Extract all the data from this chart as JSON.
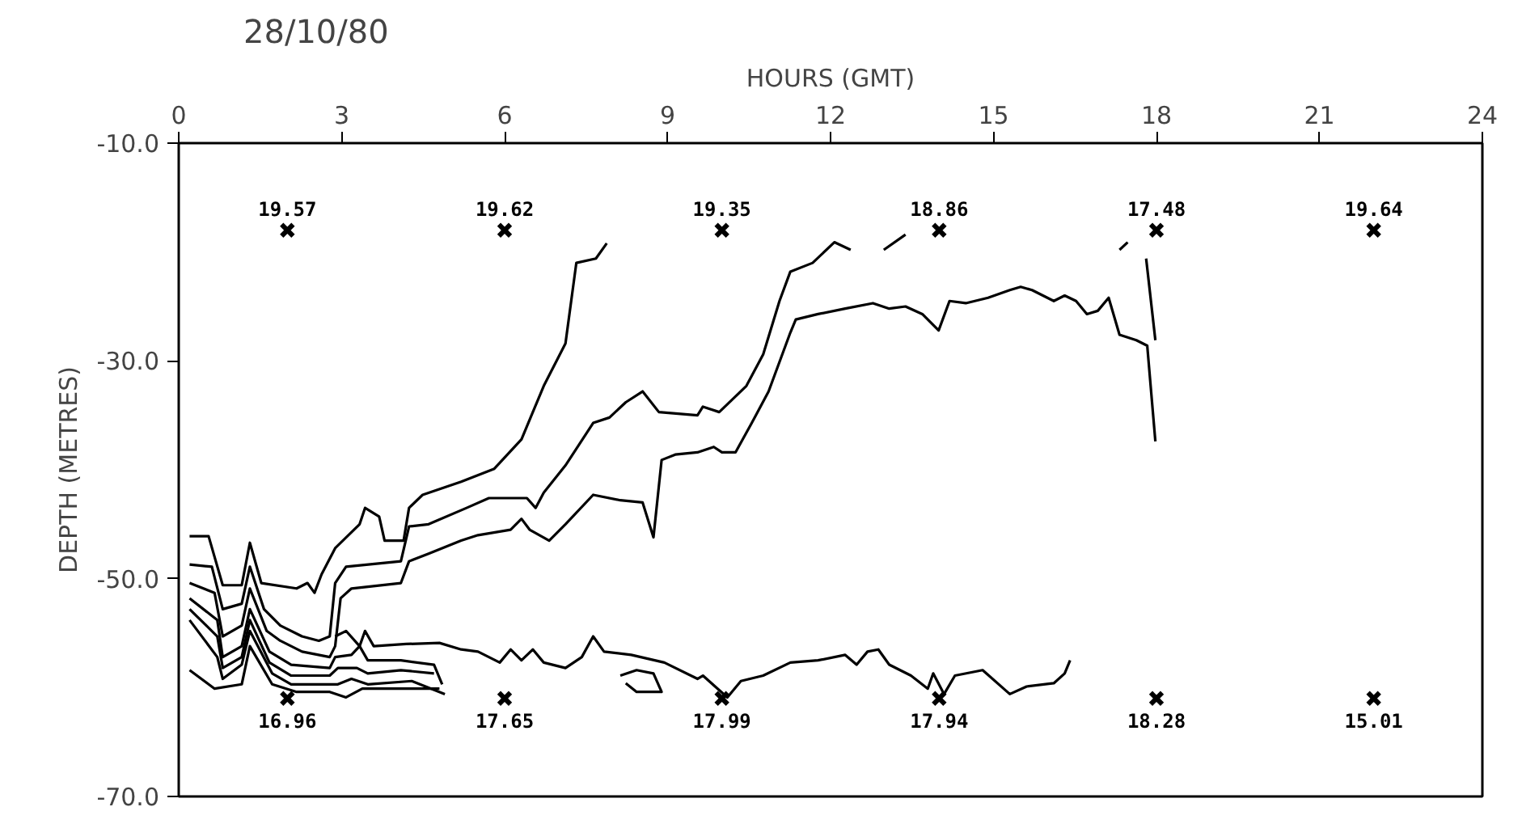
{
  "chart_data": {
    "type": "line",
    "title": "28/10/80",
    "xlabel": "HOURS (GMT)",
    "ylabel": "DEPTH (METRES)",
    "xlim": [
      0,
      24
    ],
    "xticks": [
      0,
      3,
      6,
      9,
      12,
      15,
      18,
      21,
      24
    ],
    "ylim": [
      -70,
      -10
    ],
    "yticks": [
      {
        "value": -10,
        "label": "-10.0"
      },
      {
        "value": -30,
        "label": "-30.0"
      },
      {
        "value": -50,
        "label": "-50.0"
      },
      {
        "value": -70,
        "label": "-70.0"
      }
    ],
    "grid": false,
    "line_style": "solid",
    "marker": "none",
    "series": [
      {
        "color": "#000000",
        "x": [
          0.2,
          0.55,
          0.81,
          1.16,
          1.31,
          1.52,
          2.17,
          2.37,
          2.5,
          2.63,
          2.88,
          3.33,
          3.43,
          3.69,
          3.79,
          4.14,
          4.24,
          4.49,
          5.2,
          5.81,
          6.31,
          6.72,
          7.12,
          7.32,
          7.68,
          7.88
        ],
        "values": [
          -46.1,
          -46.1,
          -50.6,
          -50.6,
          -46.7,
          -50.4,
          -50.9,
          -50.4,
          -51.3,
          -49.6,
          -47.2,
          -45.0,
          -43.5,
          -44.3,
          -46.5,
          -46.5,
          -43.5,
          -42.3,
          -41.1,
          -39.9,
          -37.2,
          -32.3,
          -28.4,
          -21.0,
          -20.6,
          -19.2
        ]
      },
      {
        "color": "#000000",
        "x": [
          0.2,
          0.61,
          0.81,
          1.16,
          1.31,
          1.57,
          1.87,
          2.27,
          2.58,
          2.78,
          2.88,
          3.08,
          4.09,
          4.24,
          4.6,
          5.3,
          5.71,
          6.41,
          6.57,
          6.72,
          7.12,
          7.63,
          7.93,
          8.23,
          8.54,
          8.84,
          9.55,
          9.65,
          9.95,
          10.45,
          10.76,
          11.06,
          11.26,
          11.67,
          12.07,
          12.37,
          12.7,
          12.98,
          13.38,
          15.0,
          17.32,
          17.47,
          17.6,
          17.81,
          17.98
        ],
        "values": [
          -48.7,
          -48.9,
          -52.8,
          -52.3,
          -48.9,
          -52.8,
          -54.3,
          -55.3,
          -55.7,
          -55.3,
          -50.4,
          -48.9,
          -48.4,
          -45.2,
          -45.0,
          -43.5,
          -42.6,
          -42.6,
          -43.5,
          -42.1,
          -39.6,
          -35.7,
          -35.2,
          -33.8,
          -32.8,
          -34.7,
          -35.0,
          -34.2,
          -34.7,
          -32.3,
          -29.4,
          -24.5,
          -21.8,
          -21.0,
          -19.1,
          -19.8,
          null,
          -19.8,
          -18.4,
          null,
          -19.8,
          -19.1,
          null,
          -20.6,
          -28.1
        ]
      },
      {
        "color": "#000000",
        "x": [
          0.2,
          0.66,
          0.81,
          1.16,
          1.31,
          1.62,
          1.87,
          2.27,
          2.78,
          2.88,
          2.98,
          3.18,
          4.09,
          4.24,
          4.6,
          5.2,
          5.51,
          6.11,
          6.31,
          6.46,
          6.82,
          7.12,
          7.63,
          8.13,
          8.54,
          8.74,
          8.89,
          9.14,
          9.55,
          9.85,
          10.0,
          10.25,
          10.55,
          10.86,
          11.26,
          11.36,
          11.77,
          12.27,
          12.78,
          13.08,
          13.38,
          13.69,
          13.99,
          14.19,
          14.49,
          14.9,
          15.3,
          15.5,
          15.71,
          16.11,
          16.31,
          16.52,
          16.72,
          16.92,
          17.12,
          17.32,
          17.63,
          17.83,
          17.98
        ],
        "values": [
          -50.4,
          -51.3,
          -55.3,
          -54.3,
          -50.9,
          -54.8,
          -55.7,
          -56.7,
          -57.2,
          -56.2,
          -51.8,
          -50.9,
          -50.4,
          -48.4,
          -47.7,
          -46.5,
          -46.0,
          -45.5,
          -44.5,
          -45.5,
          -46.5,
          -45.0,
          -42.3,
          -42.8,
          -43.0,
          -46.2,
          -39.1,
          -38.6,
          -38.4,
          -37.9,
          -38.4,
          -38.4,
          -35.7,
          -32.8,
          -27.4,
          -26.2,
          -25.7,
          -25.2,
          -24.7,
          -25.2,
          -25.0,
          -25.7,
          -27.2,
          -24.5,
          -24.7,
          -24.2,
          -23.5,
          -23.2,
          -23.5,
          -24.5,
          -24.0,
          -24.5,
          -25.7,
          -25.4,
          -24.2,
          -27.6,
          -28.1,
          -28.6,
          -37.4
        ]
      },
      {
        "color": "#000000",
        "x": [
          2.88,
          3.08,
          3.33,
          3.43,
          3.59,
          4.19,
          4.8,
          5.2,
          5.51,
          5.91,
          6.11,
          6.31,
          6.52,
          6.72,
          7.12,
          7.42,
          7.63,
          7.83,
          8.33,
          8.94,
          9.55,
          9.65,
          10.1,
          10.35,
          10.76,
          11.26,
          11.77,
          12.27,
          12.48,
          12.68,
          12.88,
          13.08,
          13.48,
          13.79,
          13.89,
          14.09,
          14.29,
          14.8,
          15.3,
          15.61,
          16.11,
          16.31,
          16.41
        ],
        "values": [
          -55.3,
          -54.8,
          -56.2,
          -54.8,
          -56.2,
          -56.0,
          -55.9,
          -56.5,
          -56.7,
          -57.7,
          -56.5,
          -57.5,
          -56.5,
          -57.7,
          -58.2,
          -57.2,
          -55.3,
          -56.7,
          -57.0,
          -57.7,
          -59.2,
          -58.9,
          -60.9,
          -59.4,
          -58.9,
          -57.7,
          -57.5,
          -57.0,
          -57.9,
          -56.7,
          -56.5,
          -57.9,
          -58.9,
          -60.1,
          -58.7,
          -60.6,
          -58.9,
          -58.4,
          -60.6,
          -59.9,
          -59.6,
          -58.7,
          -57.5
        ]
      },
      {
        "color": "#000000",
        "x": [
          8.13,
          8.43,
          8.74,
          8.89,
          8.43,
          8.23
        ],
        "values": [
          -58.9,
          -58.4,
          -58.7,
          -60.4,
          -60.4,
          -59.6
        ]
      },
      {
        "color": "#000000",
        "x": [
          0.2,
          0.71,
          0.81,
          1.16,
          1.31,
          1.67,
          2.07,
          2.78,
          2.88,
          3.18,
          3.33,
          3.48,
          4.09,
          4.7,
          4.85
        ],
        "values": [
          -51.8,
          -53.8,
          -57.2,
          -56.2,
          -52.8,
          -56.7,
          -57.9,
          -58.2,
          -57.2,
          -57.0,
          -56.2,
          -57.5,
          -57.5,
          -57.9,
          -59.7
        ]
      },
      {
        "color": "#000000",
        "x": [
          0.2,
          0.71,
          0.81,
          1.16,
          1.31,
          1.67,
          2.07,
          2.78,
          2.93,
          3.28,
          3.48,
          4.09,
          4.7
        ],
        "values": [
          -52.8,
          -55.3,
          -58.2,
          -57.2,
          -53.8,
          -57.7,
          -58.9,
          -58.9,
          -58.2,
          -58.2,
          -58.7,
          -58.4,
          -58.7
        ]
      },
      {
        "color": "#000000",
        "x": [
          0.2,
          0.71,
          0.81,
          1.16,
          1.31,
          1.72,
          2.07,
          2.57,
          2.93,
          3.18,
          3.48,
          4.29,
          4.9
        ],
        "values": [
          -53.8,
          -57.2,
          -59.2,
          -57.9,
          -54.8,
          -58.7,
          -59.7,
          -59.7,
          -59.7,
          -59.2,
          -59.7,
          -59.4,
          -60.6
        ]
      },
      {
        "color": "#000000",
        "x": [
          0.2,
          0.66,
          1.16,
          1.31,
          1.72,
          2.17,
          2.78,
          3.08,
          3.38,
          4.39,
          4.8
        ],
        "values": [
          -58.4,
          -60.1,
          -59.7,
          -56.2,
          -59.7,
          -60.4,
          -60.4,
          -60.9,
          -60.1,
          -60.1,
          -60.1
        ]
      },
      {
        "type": "scatter",
        "marker": "cross",
        "color": "#000000",
        "x": [
          2,
          6,
          10,
          14,
          18,
          22
        ],
        "values": [
          -18,
          -18,
          -18,
          -18,
          -18,
          -18
        ]
      },
      {
        "type": "scatter",
        "marker": "cross",
        "color": "#000000",
        "x": [
          2,
          6,
          10,
          14,
          18,
          22
        ],
        "values": [
          -61,
          -61,
          -61,
          -61,
          -61,
          -61
        ]
      }
    ],
    "annotations": [
      {
        "text": "19.57",
        "x": 2,
        "y": -18
      },
      {
        "text": "19.62",
        "x": 6,
        "y": -18
      },
      {
        "text": "19.35",
        "x": 10,
        "y": -18
      },
      {
        "text": "18.86",
        "x": 14,
        "y": -18
      },
      {
        "text": "17.48",
        "x": 18,
        "y": -18
      },
      {
        "text": "19.64",
        "x": 22,
        "y": -18
      },
      {
        "text": "16.96",
        "x": 2,
        "y": -61
      },
      {
        "text": "17.65",
        "x": 6,
        "y": -61
      },
      {
        "text": "17.99",
        "x": 10,
        "y": -61
      },
      {
        "text": "17.94",
        "x": 14,
        "y": -61
      },
      {
        "text": "18.28",
        "x": 18,
        "y": -61
      },
      {
        "text": "15.01",
        "x": 22,
        "y": -61
      }
    ]
  }
}
